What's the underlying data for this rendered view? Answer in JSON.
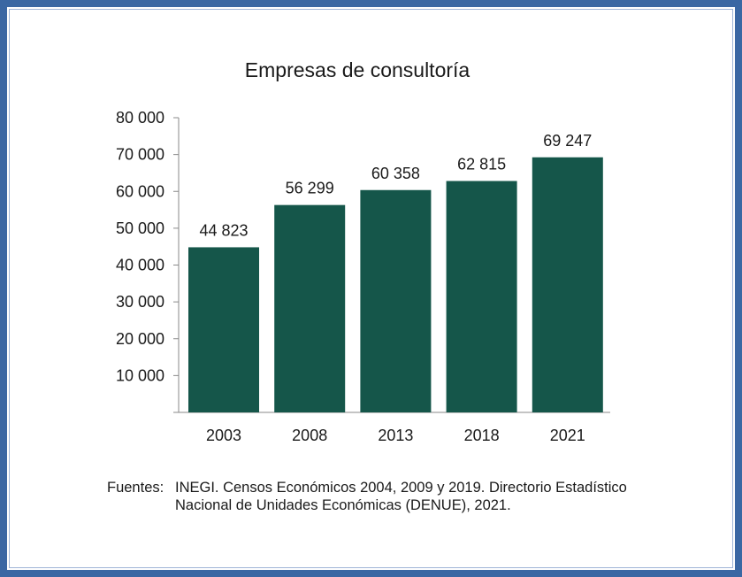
{
  "chart_data": {
    "type": "bar",
    "title": "Empresas de consultoría",
    "categories": [
      "2003",
      "2008",
      "2013",
      "2018",
      "2021"
    ],
    "values": [
      44823,
      56299,
      60358,
      62815,
      69247
    ],
    "value_labels": [
      "44 823",
      "56 299",
      "60 358",
      "62 815",
      "69 247"
    ],
    "ylim": [
      0,
      80000
    ],
    "yticks": [
      10000,
      20000,
      30000,
      40000,
      50000,
      60000,
      70000,
      80000
    ],
    "ytick_labels": [
      "10 000",
      "20 000",
      "30 000",
      "40 000",
      "50 000",
      "60 000",
      "70 000",
      "80 000"
    ],
    "xlabel": "",
    "ylabel": "",
    "grid": false,
    "bar_color": "#15564a"
  },
  "source": {
    "label": "Fuentes:",
    "text": "INEGI. Censos Económicos 2004, 2009 y 2019. Directorio Estadístico Nacional de Unidades Económicas (DENUE), 2021."
  },
  "frame": {
    "border_color": "#3a67a3"
  }
}
